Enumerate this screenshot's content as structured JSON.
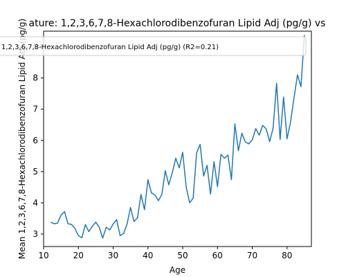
{
  "chart_data": {
    "type": "line",
    "title": "ature: 1,2,3,6,7,8-Hexachlorodibenzofuran Lipid Adj (pg/g) vs",
    "xlabel": "Age",
    "ylabel": "Mean 1,2,3,6,7,8-Hexachlorodibenzofuran Lipid Adj (pg/g)",
    "xlim": [
      10,
      87
    ],
    "ylim": [
      2.6,
      9.5
    ],
    "xticks": [
      10,
      20,
      30,
      40,
      50,
      60,
      70,
      80
    ],
    "yticks": [
      3,
      4,
      5,
      6,
      7,
      8,
      9
    ],
    "legend_position": "top-center",
    "grid": false,
    "series": [
      {
        "name": "1,2,3,6,7,8-Hexachlorodibenzofuran Lipid Adj (pg/g) (R2=0.21)",
        "color": "#1f77b4",
        "x": [
          12,
          13,
          14,
          15,
          16,
          17,
          18,
          19,
          20,
          21,
          22,
          23,
          24,
          25,
          26,
          27,
          28,
          29,
          30,
          31,
          32,
          33,
          34,
          35,
          36,
          37,
          38,
          39,
          40,
          41,
          42,
          43,
          44,
          45,
          46,
          47,
          48,
          49,
          50,
          51,
          52,
          53,
          54,
          55,
          56,
          57,
          58,
          59,
          60,
          61,
          62,
          63,
          64,
          65,
          66,
          67,
          68,
          69,
          70,
          71,
          72,
          73,
          74,
          75,
          76,
          77,
          78,
          79,
          80,
          81,
          82,
          83,
          84,
          85
        ],
        "y": [
          3.38,
          3.33,
          3.35,
          3.6,
          3.72,
          3.33,
          3.31,
          3.18,
          2.95,
          2.88,
          3.3,
          3.08,
          3.25,
          3.38,
          3.22,
          2.87,
          3.22,
          3.13,
          3.32,
          3.46,
          2.95,
          3.02,
          3.32,
          3.85,
          3.4,
          3.52,
          4.27,
          3.78,
          4.74,
          4.32,
          4.25,
          4.07,
          4.27,
          5.03,
          4.58,
          4.97,
          5.43,
          5.12,
          5.62,
          4.5,
          4.0,
          4.15,
          5.6,
          5.87,
          4.86,
          5.2,
          4.28,
          5.32,
          4.52,
          5.55,
          5.43,
          5.53,
          4.74,
          6.53,
          5.67,
          6.23,
          5.95,
          5.89,
          6.02,
          6.38,
          6.17,
          6.48,
          6.37,
          5.96,
          6.4,
          7.83,
          6.03,
          7.39,
          6.05,
          6.58,
          7.37,
          8.1,
          7.72,
          9.38
        ]
      }
    ]
  }
}
